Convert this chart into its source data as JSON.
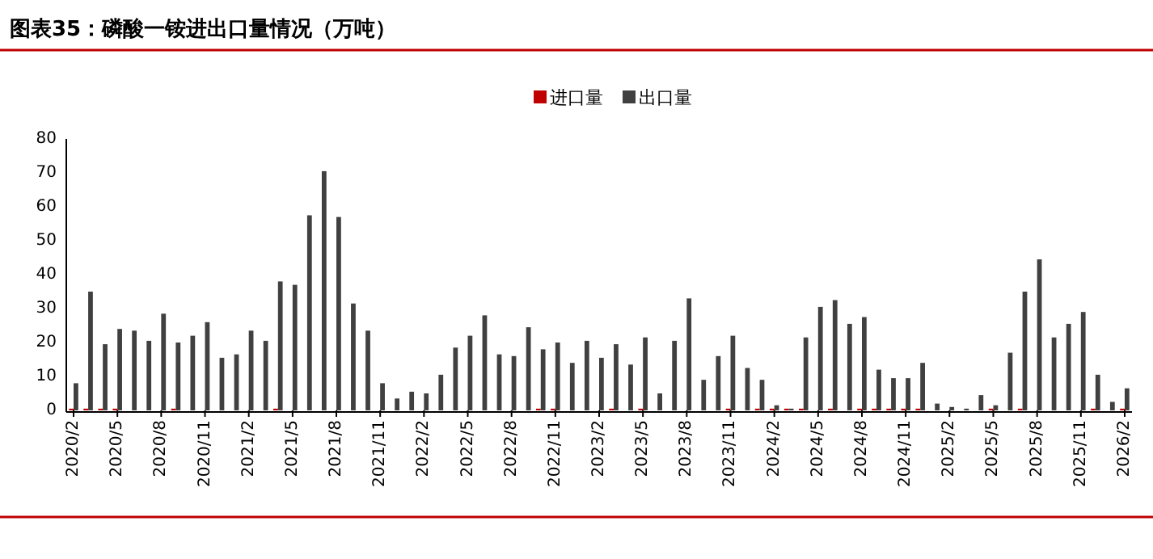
{
  "chart_data": {
    "type": "bar",
    "title": "图表35：磷酸一铵进出口量情况（万吨）",
    "categories": [
      "2020/2",
      null,
      null,
      "2020/5",
      null,
      null,
      "2020/8",
      null,
      null,
      "2020/11",
      null,
      null,
      "2021/2",
      null,
      null,
      "2021/5",
      null,
      null,
      "2021/8",
      null,
      null,
      "2021/11",
      null,
      null,
      "2022/2",
      null,
      null,
      "2022/5",
      null,
      null,
      "2022/8",
      null,
      null,
      "2022/11",
      null,
      null,
      "2023/2",
      null,
      null,
      "2023/5",
      null,
      null,
      "2023/8",
      null,
      null,
      "2023/11",
      null,
      null,
      "2024/2",
      null,
      null,
      "2024/5",
      null,
      null,
      "2024/8",
      null,
      null,
      "2024/11",
      null,
      null,
      "2025/2",
      null,
      null,
      "2025/5",
      null,
      null,
      "2025/8",
      null,
      null,
      "2025/11",
      null,
      null,
      "2026/2"
    ],
    "series": [
      {
        "name": "进口量",
        "color": "#c00000",
        "values": [
          0.5,
          0.5,
          0.5,
          0.5,
          0,
          0,
          0,
          0.5,
          0,
          0,
          0,
          0,
          0,
          0,
          0.5,
          0,
          0,
          0,
          0,
          0,
          0,
          0,
          0,
          0,
          0,
          0,
          0,
          0,
          0,
          0,
          0,
          0,
          0.5,
          0.5,
          0,
          0,
          0,
          0.5,
          0,
          0.5,
          0,
          0,
          0,
          0,
          0,
          0.5,
          0,
          0.5,
          0.5,
          0.5,
          0.5,
          0,
          0.5,
          0,
          0.5,
          0.5,
          0.5,
          0.5,
          0.5,
          0,
          0,
          0,
          0,
          0.5,
          0,
          0.5,
          0,
          0,
          0,
          0,
          0.5,
          0,
          0.5
        ]
      },
      {
        "name": "出口量",
        "color": "#404040",
        "values": [
          8,
          35,
          19.5,
          24,
          23.5,
          20.5,
          28.5,
          20,
          22,
          26,
          15.5,
          16.5,
          23.5,
          20.5,
          38,
          37,
          57.5,
          70.5,
          57,
          31.5,
          23.5,
          8,
          3.5,
          5.5,
          5,
          10.5,
          18.5,
          22,
          28,
          16.5,
          16,
          24.5,
          18,
          20,
          14,
          20.5,
          15.5,
          19.5,
          13.5,
          21.5,
          5,
          20.5,
          33,
          9,
          16,
          22,
          12.5,
          9,
          1.5,
          0.5,
          21.5,
          30.5,
          32.5,
          25.5,
          27.5,
          12,
          9.5,
          9.5,
          14,
          2,
          1,
          0.5,
          4.5,
          1.5,
          17,
          35,
          44.5,
          21.5,
          25.5,
          29,
          10.5,
          2.5,
          6.5
        ]
      }
    ],
    "ylim": [
      0,
      80
    ],
    "yticks": [
      0,
      10,
      20,
      30,
      40,
      50,
      60,
      70,
      80
    ],
    "grid": false,
    "legend": "top"
  }
}
